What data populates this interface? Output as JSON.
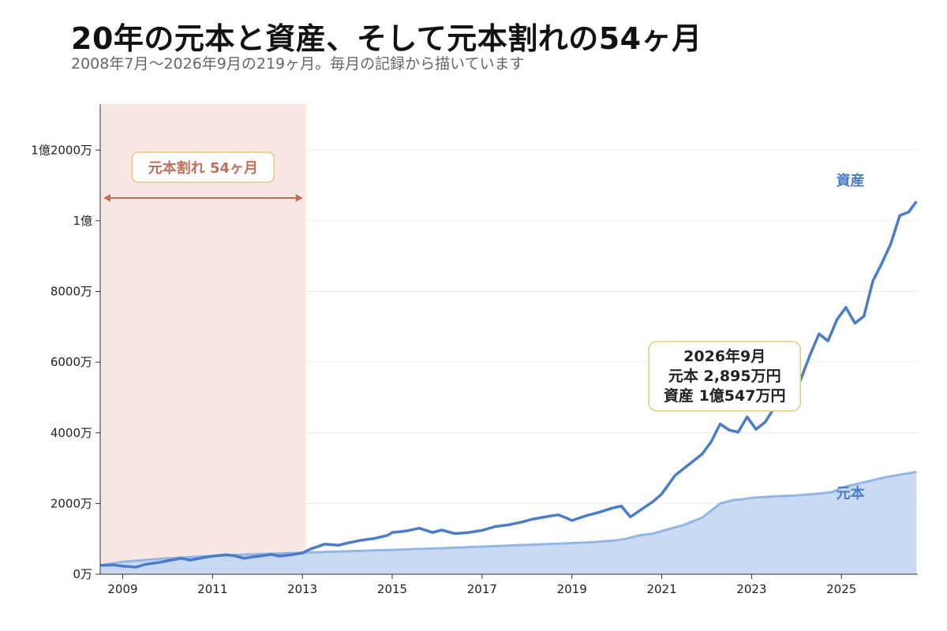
{
  "header": {
    "title": "20年の元本と資産、そして元本割れの54ヶ月",
    "subtitle": "2008年7月〜2026年9月の219ヶ月。毎月の記録から描いています"
  },
  "colors": {
    "asset_line": "#4a7cc9",
    "principal_line": "#93b6e6",
    "principal_fill": "#c7d8f2",
    "shade": "#f7e6e0",
    "shade_label": "#c0705a",
    "box_border": "#e8c880",
    "grid": "#ececec"
  },
  "chart_data": {
    "type": "area",
    "title": "20年の元本と資産、そして元本割れの54ヶ月",
    "subtitle": "2008年7月〜2026年9月の219ヶ月。毎月の記録から描いています",
    "xlim": [
      2008.5,
      2026.7
    ],
    "ylim": [
      0,
      133000000
    ],
    "x_ticks": [
      2009,
      2011,
      2013,
      2015,
      2017,
      2019,
      2021,
      2023,
      2025
    ],
    "y_ticks": [
      {
        "value": 0,
        "label": "0万"
      },
      {
        "value": 20000000,
        "label": "2000万"
      },
      {
        "value": 40000000,
        "label": "4000万"
      },
      {
        "value": 60000000,
        "label": "6000万"
      },
      {
        "value": 80000000,
        "label": "8000万"
      },
      {
        "value": 100000000,
        "label": "1億"
      },
      {
        "value": 120000000,
        "label": "1億2000万"
      }
    ],
    "grid": true,
    "shaded_region": {
      "x_start": 2008.5,
      "x_end": 2013.08,
      "label": "元本割れ 54ヶ月"
    },
    "series": [
      {
        "name": "元本",
        "type": "area",
        "points": [
          [
            2008.5,
            2500000
          ],
          [
            2009.0,
            3500000
          ],
          [
            2010.0,
            4500000
          ],
          [
            2011.0,
            5200000
          ],
          [
            2012.0,
            5700000
          ],
          [
            2013.0,
            6100000
          ],
          [
            2014.0,
            6500000
          ],
          [
            2015.0,
            6900000
          ],
          [
            2016.0,
            7300000
          ],
          [
            2017.0,
            7800000
          ],
          [
            2018.0,
            8300000
          ],
          [
            2019.0,
            8800000
          ],
          [
            2019.5,
            9100000
          ],
          [
            2020.0,
            9600000
          ],
          [
            2020.2,
            10000000
          ],
          [
            2020.5,
            11000000
          ],
          [
            2020.8,
            11500000
          ],
          [
            2021.0,
            12200000
          ],
          [
            2021.5,
            14000000
          ],
          [
            2021.9,
            16000000
          ],
          [
            2022.0,
            17000000
          ],
          [
            2022.3,
            20000000
          ],
          [
            2022.6,
            21000000
          ],
          [
            2022.8,
            21200000
          ],
          [
            2023.0,
            21600000
          ],
          [
            2023.5,
            22000000
          ],
          [
            2024.0,
            22300000
          ],
          [
            2024.5,
            22800000
          ],
          [
            2024.8,
            23200000
          ],
          [
            2025.0,
            24500000
          ],
          [
            2025.5,
            26000000
          ],
          [
            2026.0,
            27500000
          ],
          [
            2026.67,
            28950000
          ]
        ]
      },
      {
        "name": "資産",
        "type": "line",
        "points": [
          [
            2008.5,
            2500000
          ],
          [
            2008.8,
            2600000
          ],
          [
            2009.0,
            2300000
          ],
          [
            2009.3,
            2000000
          ],
          [
            2009.5,
            2800000
          ],
          [
            2009.8,
            3300000
          ],
          [
            2010.0,
            3800000
          ],
          [
            2010.3,
            4500000
          ],
          [
            2010.5,
            4000000
          ],
          [
            2010.8,
            4700000
          ],
          [
            2011.0,
            5100000
          ],
          [
            2011.3,
            5500000
          ],
          [
            2011.5,
            5200000
          ],
          [
            2011.7,
            4500000
          ],
          [
            2011.9,
            4900000
          ],
          [
            2012.1,
            5200000
          ],
          [
            2012.3,
            5600000
          ],
          [
            2012.5,
            5100000
          ],
          [
            2012.8,
            5600000
          ],
          [
            2013.0,
            6000000
          ],
          [
            2013.2,
            7200000
          ],
          [
            2013.5,
            8500000
          ],
          [
            2013.8,
            8200000
          ],
          [
            2014.0,
            8800000
          ],
          [
            2014.3,
            9600000
          ],
          [
            2014.6,
            10100000
          ],
          [
            2014.9,
            11000000
          ],
          [
            2015.0,
            11800000
          ],
          [
            2015.3,
            12200000
          ],
          [
            2015.6,
            13000000
          ],
          [
            2015.9,
            11800000
          ],
          [
            2016.1,
            12500000
          ],
          [
            2016.4,
            11500000
          ],
          [
            2016.7,
            11800000
          ],
          [
            2017.0,
            12400000
          ],
          [
            2017.3,
            13500000
          ],
          [
            2017.6,
            14000000
          ],
          [
            2017.9,
            14800000
          ],
          [
            2018.1,
            15500000
          ],
          [
            2018.4,
            16200000
          ],
          [
            2018.7,
            16800000
          ],
          [
            2018.9,
            15800000
          ],
          [
            2019.0,
            15200000
          ],
          [
            2019.3,
            16500000
          ],
          [
            2019.6,
            17500000
          ],
          [
            2019.9,
            18700000
          ],
          [
            2020.1,
            19300000
          ],
          [
            2020.3,
            16200000
          ],
          [
            2020.6,
            18800000
          ],
          [
            2020.8,
            20500000
          ],
          [
            2021.0,
            22700000
          ],
          [
            2021.3,
            28000000
          ],
          [
            2021.6,
            31000000
          ],
          [
            2021.9,
            34000000
          ],
          [
            2022.1,
            37500000
          ],
          [
            2022.3,
            42500000
          ],
          [
            2022.5,
            40800000
          ],
          [
            2022.7,
            40200000
          ],
          [
            2022.9,
            44500000
          ],
          [
            2023.1,
            41000000
          ],
          [
            2023.3,
            43000000
          ],
          [
            2023.6,
            49000000
          ],
          [
            2023.8,
            51000000
          ],
          [
            2024.0,
            52000000
          ],
          [
            2024.3,
            62000000
          ],
          [
            2024.5,
            68000000
          ],
          [
            2024.7,
            66000000
          ],
          [
            2024.9,
            72000000
          ],
          [
            2025.1,
            75500000
          ],
          [
            2025.3,
            71000000
          ],
          [
            2025.5,
            73000000
          ],
          [
            2025.7,
            83000000
          ],
          [
            2025.9,
            88000000
          ],
          [
            2026.1,
            93500000
          ],
          [
            2026.3,
            101500000
          ],
          [
            2026.5,
            102500000
          ],
          [
            2026.67,
            105470000
          ]
        ]
      }
    ],
    "series_labels": {
      "asset": "資産",
      "principal": "元本"
    },
    "annotation": {
      "lines": [
        "2026年9月",
        "元本 2,895万円",
        "資産 1億547万円"
      ],
      "anchor_x": 2022.4,
      "anchor_y": 51000000
    }
  }
}
